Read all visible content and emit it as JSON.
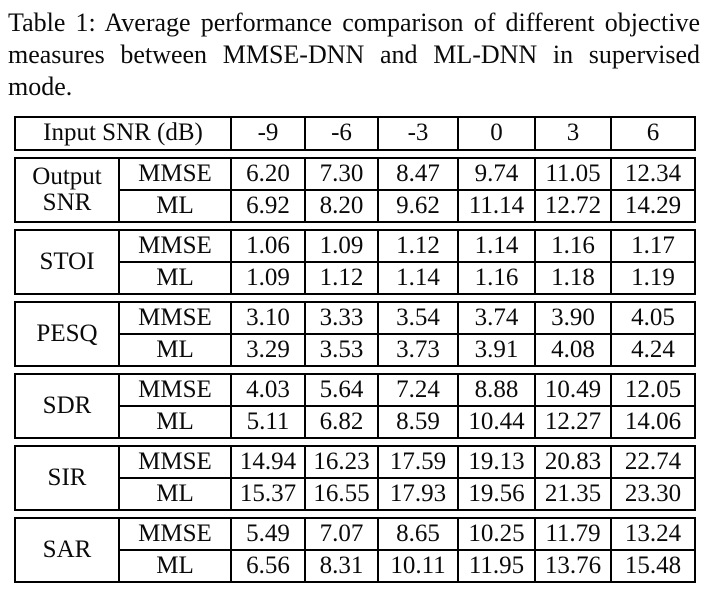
{
  "caption": {
    "lines": [
      "Table 1: Average performance comparison of different objective",
      "measures between MMSE-DNN and ML-DNN in supervised",
      "mode."
    ]
  },
  "table": {
    "header": {
      "label": "Input SNR (dB)",
      "columns": [
        "-9",
        "-6",
        "-3",
        "0",
        "3",
        "6"
      ]
    },
    "sections": [
      {
        "metric": "Output SNR",
        "rows": [
          {
            "method": "MMSE",
            "values": [
              "6.20",
              "7.30",
              "8.47",
              "9.74",
              "11.05",
              "12.34"
            ]
          },
          {
            "method": "ML",
            "values": [
              "6.92",
              "8.20",
              "9.62",
              "11.14",
              "12.72",
              "14.29"
            ]
          }
        ]
      },
      {
        "metric": "STOI",
        "rows": [
          {
            "method": "MMSE",
            "values": [
              "1.06",
              "1.09",
              "1.12",
              "1.14",
              "1.16",
              "1.17"
            ]
          },
          {
            "method": "ML",
            "values": [
              "1.09",
              "1.12",
              "1.14",
              "1.16",
              "1.18",
              "1.19"
            ]
          }
        ]
      },
      {
        "metric": "PESQ",
        "rows": [
          {
            "method": "MMSE",
            "values": [
              "3.10",
              "3.33",
              "3.54",
              "3.74",
              "3.90",
              "4.05"
            ]
          },
          {
            "method": "ML",
            "values": [
              "3.29",
              "3.53",
              "3.73",
              "3.91",
              "4.08",
              "4.24"
            ]
          }
        ]
      },
      {
        "metric": "SDR",
        "rows": [
          {
            "method": "MMSE",
            "values": [
              "4.03",
              "5.64",
              "7.24",
              "8.88",
              "10.49",
              "12.05"
            ]
          },
          {
            "method": "ML",
            "values": [
              "5.11",
              "6.82",
              "8.59",
              "10.44",
              "12.27",
              "14.06"
            ]
          }
        ]
      },
      {
        "metric": "SIR",
        "rows": [
          {
            "method": "MMSE",
            "values": [
              "14.94",
              "16.23",
              "17.59",
              "19.13",
              "20.83",
              "22.74"
            ]
          },
          {
            "method": "ML",
            "values": [
              "15.37",
              "16.55",
              "17.93",
              "19.56",
              "21.35",
              "23.30"
            ]
          }
        ]
      },
      {
        "metric": "SAR",
        "rows": [
          {
            "method": "MMSE",
            "values": [
              "5.49",
              "7.07",
              "8.65",
              "10.25",
              "11.79",
              "13.24"
            ]
          },
          {
            "method": "ML",
            "values": [
              "6.56",
              "8.31",
              "10.11",
              "11.95",
              "13.76",
              "15.48"
            ]
          }
        ]
      }
    ],
    "colors": {
      "text": "#0a0a0a",
      "border": "#000000",
      "background": "#ffffff"
    }
  }
}
